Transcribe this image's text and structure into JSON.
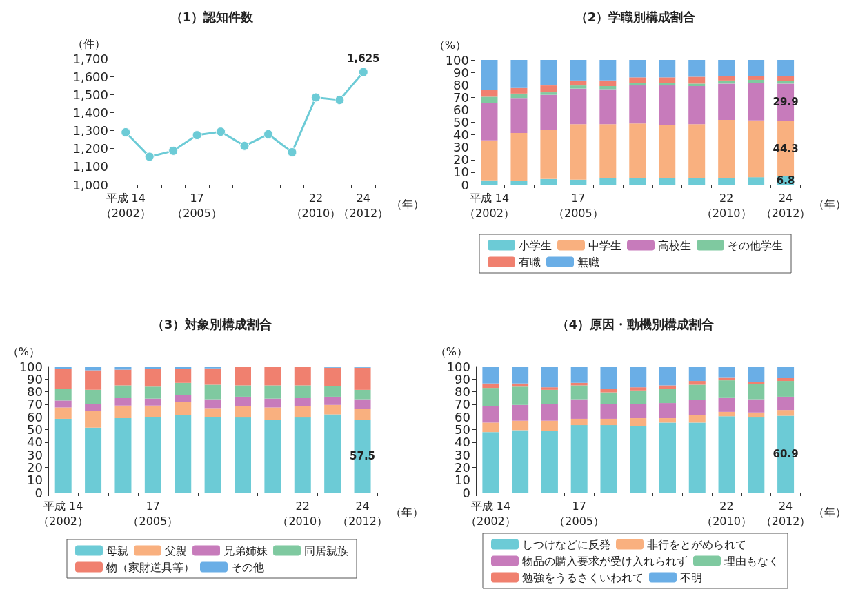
{
  "chart_data": [
    {
      "type": "line",
      "title": "（1）認知件数",
      "ylabel": "（件）",
      "xlabel": "（年）",
      "categories": [
        "平成 14\n（2002）",
        null,
        null,
        "17\n（2005）",
        null,
        null,
        null,
        null,
        "22\n（2010）",
        null,
        "24\n（2012）"
      ],
      "series": [
        {
          "color": "#6ccbd6",
          "values": [
            1291,
            1155,
            1188,
            1275,
            1294,
            1215,
            1280,
            1180,
            1484,
            1470,
            1625
          ],
          "value_labels": [
            null,
            null,
            null,
            null,
            null,
            null,
            null,
            null,
            null,
            null,
            "1,625"
          ]
        }
      ],
      "ylim": [
        1000,
        1700
      ],
      "yticks": [
        {
          "value": 1000,
          "label": "1,000"
        },
        {
          "value": 1100,
          "label": "1,100"
        },
        {
          "value": 1200,
          "label": "1,200"
        },
        {
          "value": 1300,
          "label": "1,300"
        },
        {
          "value": 1400,
          "label": "1,400"
        },
        {
          "value": 1500,
          "label": "1,500"
        },
        {
          "value": 1600,
          "label": "1,600"
        },
        {
          "value": 1700,
          "label": "1,700"
        }
      ],
      "marker": "circle",
      "grid": false
    },
    {
      "type": "bar",
      "title": "（2）学職別構成割合",
      "ylabel": "（%）",
      "xlabel": "（年）",
      "categories": [
        "平成 14\n（2002）",
        null,
        null,
        "17\n（2005）",
        null,
        null,
        null,
        null,
        "22\n（2010）",
        null,
        "24\n（2012）"
      ],
      "stacked": true,
      "legend": "bottom",
      "grid": false,
      "series": [
        {
          "name": "小学生",
          "color": "#6ccbd6",
          "values": [
            3.5,
            3,
            4.5,
            4,
            5,
            5,
            5,
            5.5,
            5.5,
            6,
            6.8
          ],
          "value_labels": [
            null,
            null,
            null,
            null,
            null,
            null,
            null,
            null,
            null,
            null,
            "6.8"
          ]
        },
        {
          "name": "中学生",
          "color": "#f9b07f",
          "values": [
            32,
            38.5,
            39.5,
            44.5,
            43.5,
            44,
            42.5,
            43,
            46.5,
            45.5,
            44.3
          ],
          "value_labels": [
            null,
            null,
            null,
            null,
            null,
            null,
            null,
            null,
            null,
            null,
            "44.3"
          ]
        },
        {
          "name": "高校生",
          "color": "#c77bbb",
          "values": [
            30,
            28,
            28,
            28.5,
            28,
            30.5,
            32,
            30.5,
            29,
            30,
            29.9
          ],
          "value_labels": [
            null,
            null,
            null,
            null,
            null,
            null,
            null,
            null,
            null,
            null,
            "29.9"
          ]
        },
        {
          "name": "その他学生",
          "color": "#7fc9a0",
          "values": [
            5,
            3.5,
            2,
            2.5,
            2.5,
            2,
            2,
            2,
            2.5,
            2.5,
            2
          ]
        },
        {
          "name": "有職",
          "color": "#f0806f",
          "values": [
            5.5,
            4.5,
            5.5,
            4,
            4.5,
            4.5,
            4.5,
            5.5,
            3.5,
            3,
            4
          ]
        },
        {
          "name": "無職",
          "color": "#6aaee6",
          "values": [
            24,
            22.5,
            20.5,
            16.5,
            16.5,
            14,
            14,
            13.5,
            13,
            13,
            13
          ]
        }
      ],
      "ylim": [
        0,
        100
      ],
      "yticks": [
        0,
        10,
        20,
        30,
        40,
        50,
        60,
        70,
        80,
        90,
        100
      ]
    },
    {
      "type": "bar",
      "title": "（3）対象別構成割合",
      "ylabel": "（%）",
      "xlabel": "（年）",
      "categories": [
        "平成 14\n（2002）",
        null,
        null,
        "17\n（2005）",
        null,
        null,
        null,
        null,
        "22\n（2010）",
        null,
        "24\n（2012）"
      ],
      "stacked": true,
      "legend": "bottom",
      "grid": false,
      "series": [
        {
          "name": "母親",
          "color": "#6ccbd6",
          "values": [
            58.5,
            51.5,
            59,
            60,
            61.5,
            60,
            59.5,
            57.5,
            59.5,
            62,
            57.5
          ],
          "value_labels": [
            null,
            null,
            null,
            null,
            null,
            null,
            null,
            null,
            null,
            null,
            "57.5"
          ]
        },
        {
          "name": "父親",
          "color": "#f9b07f",
          "values": [
            9,
            13,
            10,
            9,
            10.5,
            7,
            9,
            10,
            9,
            7.5,
            9
          ]
        },
        {
          "name": "兄弟姉妹",
          "color": "#c77bbb",
          "values": [
            5.5,
            5.5,
            6,
            5.5,
            5.5,
            7,
            7.5,
            7,
            6.5,
            6.5,
            7.5
          ]
        },
        {
          "name": "同居親族",
          "color": "#7fc9a0",
          "values": [
            9.5,
            11.5,
            10,
            9.5,
            9.5,
            11.5,
            9,
            10.5,
            10,
            8.5,
            7.5
          ]
        },
        {
          "name": "物（家財道具等）",
          "color": "#f0806f",
          "values": [
            15.5,
            15.5,
            12.5,
            14,
            11,
            13,
            15,
            15,
            15,
            14.5,
            17.5
          ]
        },
        {
          "name": "その他",
          "color": "#6aaee6",
          "values": [
            2,
            3,
            2.5,
            2,
            2,
            1.5,
            0,
            0,
            0,
            1,
            1
          ]
        }
      ],
      "ylim": [
        0,
        100
      ],
      "yticks": [
        0,
        10,
        20,
        30,
        40,
        50,
        60,
        70,
        80,
        90,
        100
      ]
    },
    {
      "type": "bar",
      "title": "（4）原因・動機別構成割合",
      "ylabel": "（%）",
      "xlabel": "（年）",
      "categories": [
        "平成 14\n（2002）",
        null,
        null,
        "17\n（2005）",
        null,
        null,
        null,
        null,
        "22\n（2010）",
        null,
        "24\n（2012）"
      ],
      "stacked": true,
      "legend": "bottom",
      "grid": false,
      "series": [
        {
          "name": "しつけなどに反発",
          "color": "#6ccbd6",
          "values": [
            48,
            49.5,
            49,
            53.5,
            53.5,
            53,
            55.5,
            55.5,
            60.5,
            59.5,
            60.9
          ],
          "value_labels": [
            null,
            null,
            null,
            null,
            null,
            null,
            null,
            null,
            null,
            null,
            "60.9"
          ]
        },
        {
          "name": "非行をとがめられて",
          "color": "#f9b07f",
          "values": [
            7.5,
            7.5,
            8,
            5,
            5,
            6,
            3.5,
            6,
            3.5,
            4,
            4.6
          ]
        },
        {
          "name": "物品の購入要求が受け入れられず",
          "color": "#c77bbb",
          "values": [
            13,
            12.5,
            13.5,
            15.5,
            12,
            11.5,
            12,
            12,
            11.5,
            10.5,
            10.5
          ]
        },
        {
          "name": "理由もなく",
          "color": "#7fc9a0",
          "values": [
            14.5,
            14.5,
            11,
            11,
            9,
            10.5,
            11,
            12,
            13.5,
            12,
            12.5
          ]
        },
        {
          "name": "勉強をうるさくいわれて",
          "color": "#f0806f",
          "values": [
            3.5,
            2.5,
            2,
            2,
            2.5,
            2.5,
            3,
            3,
            2.5,
            1.5,
            2.5
          ]
        },
        {
          "name": "不明",
          "color": "#6aaee6",
          "values": [
            13.5,
            13.5,
            16.5,
            13,
            18,
            16.5,
            15,
            11.5,
            8.5,
            12.5,
            9
          ]
        }
      ],
      "ylim": [
        0,
        100
      ],
      "yticks": [
        0,
        10,
        20,
        30,
        40,
        50,
        60,
        70,
        80,
        90,
        100
      ]
    }
  ]
}
